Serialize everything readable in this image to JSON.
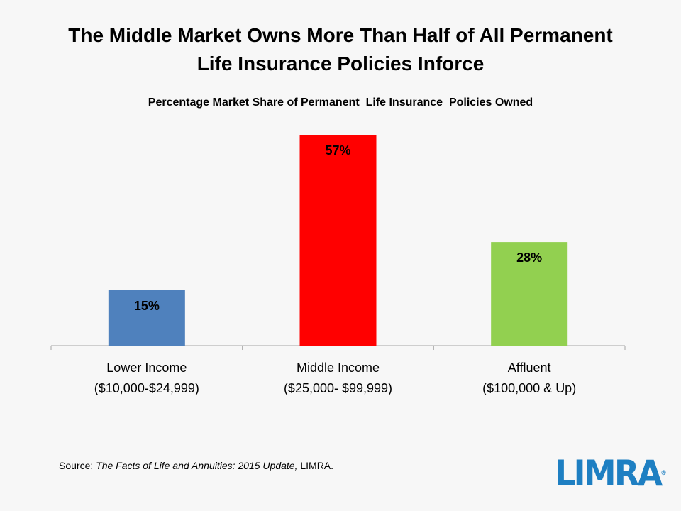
{
  "title_line1": "The Middle Market Owns More Than Half of All Permanent",
  "title_line2": "Life Insurance Policies Inforce",
  "source": {
    "prefix": "Source: ",
    "work": "The Facts of Life and Annuities: 2015 Update,",
    "suffix": " LIMRA."
  },
  "logo": {
    "text": "LIMRA",
    "mark": "®"
  },
  "chart_data": {
    "type": "bar",
    "title": "Percentage Market Share of Permanent  Life Insurance  Policies Owned",
    "categories": [
      [
        "Lower Income",
        "($10,000-$24,999)"
      ],
      [
        "Middle Income",
        "($25,000- $99,999)"
      ],
      [
        "Affluent",
        "($100,000 & Up)"
      ]
    ],
    "values": [
      15,
      57,
      28
    ],
    "data_labels": [
      "15%",
      "57%",
      "28%"
    ],
    "colors": [
      "#4f81bd",
      "#ff0000",
      "#92d050"
    ],
    "ylim": [
      0,
      60
    ],
    "grid": false,
    "legend": "none",
    "xlabel": "",
    "ylabel": ""
  }
}
